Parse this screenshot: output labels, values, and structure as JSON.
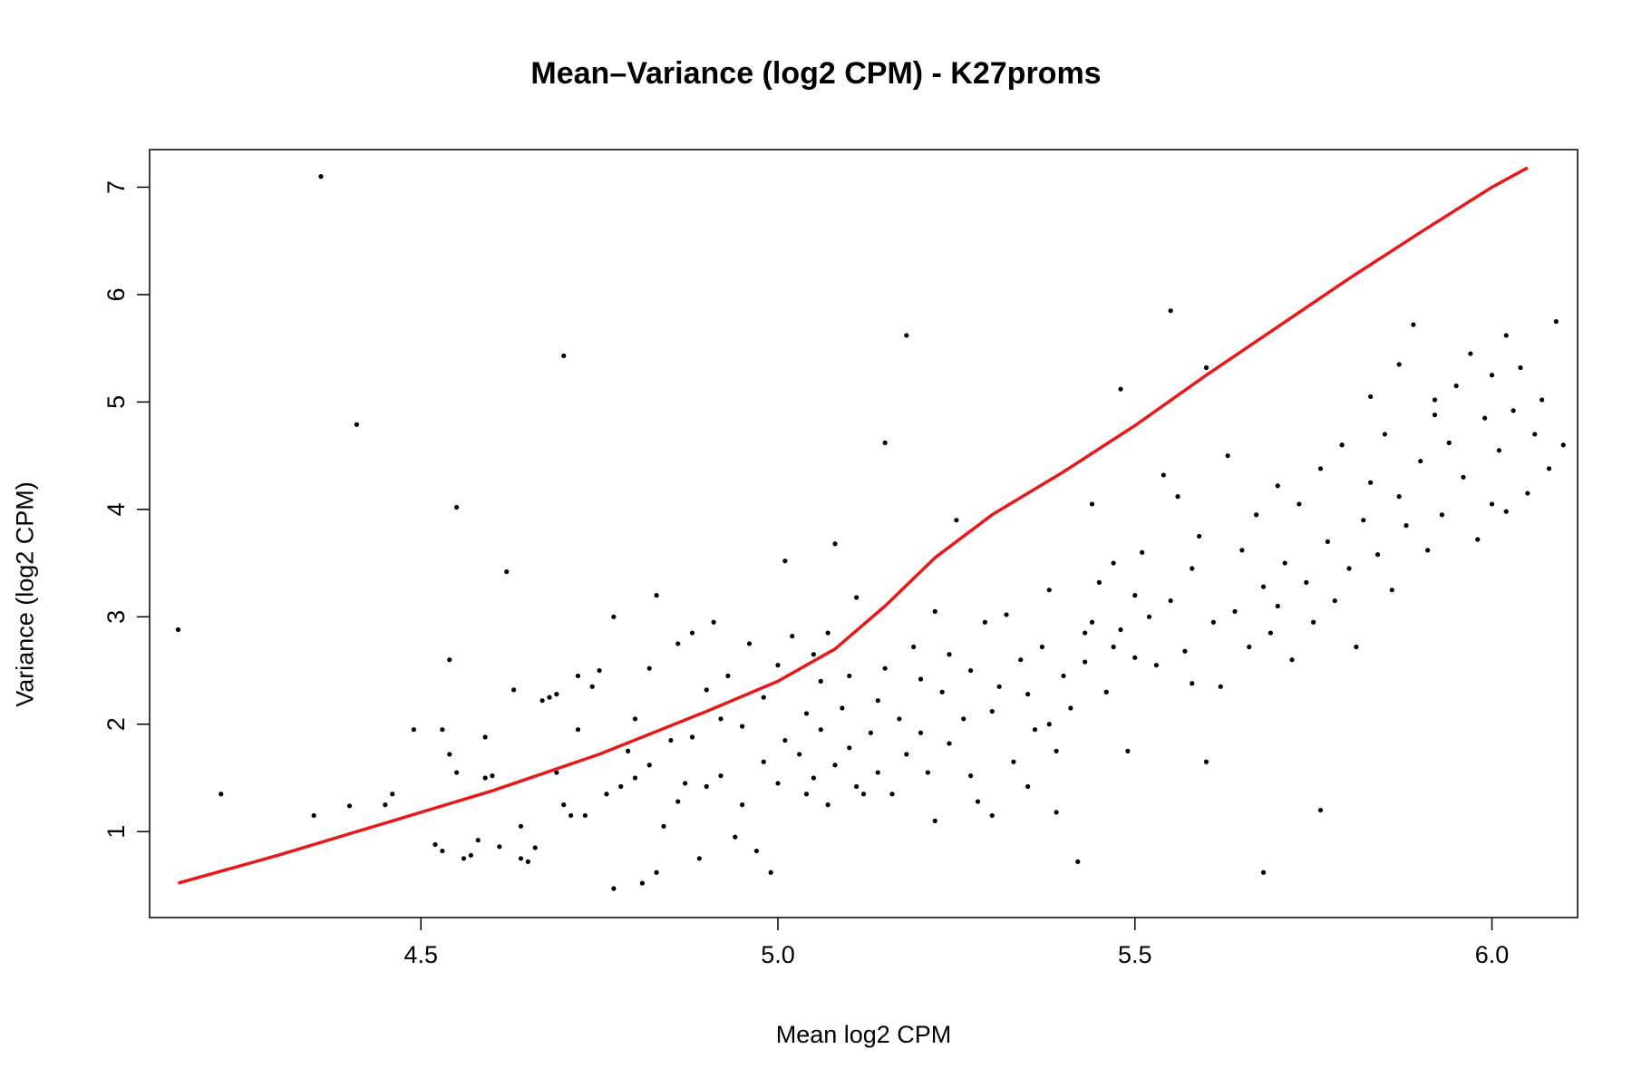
{
  "chart_data": {
    "type": "scatter",
    "title": "Mean–Variance (log2 CPM) - K27proms",
    "xlabel": "Mean log2 CPM",
    "ylabel": "Variance (log2 CPM)",
    "xlim": [
      4.12,
      6.12
    ],
    "ylim": [
      0.2,
      7.35
    ],
    "xticks": [
      4.5,
      5.0,
      5.5,
      6.0
    ],
    "xtick_labels": [
      "4.5",
      "5.0",
      "5.5",
      "6.0"
    ],
    "yticks": [
      1,
      2,
      3,
      4,
      5,
      6,
      7
    ],
    "ytick_labels": [
      "1",
      "2",
      "3",
      "4",
      "5",
      "6",
      "7"
    ],
    "grid": false,
    "legend": "none",
    "series": [
      {
        "type": "scatter",
        "color": "#000000",
        "points": [
          [
            4.16,
            2.88
          ],
          [
            4.22,
            1.35
          ],
          [
            4.35,
            1.15
          ],
          [
            4.36,
            7.1
          ],
          [
            4.4,
            1.24
          ],
          [
            4.41,
            4.79
          ],
          [
            4.45,
            1.25
          ],
          [
            4.46,
            1.35
          ],
          [
            4.49,
            1.95
          ],
          [
            4.52,
            0.88
          ],
          [
            4.53,
            0.82
          ],
          [
            4.53,
            1.95
          ],
          [
            4.54,
            1.72
          ],
          [
            4.54,
            2.6
          ],
          [
            4.55,
            4.02
          ],
          [
            4.55,
            1.55
          ],
          [
            4.56,
            0.75
          ],
          [
            4.57,
            0.78
          ],
          [
            4.58,
            0.92
          ],
          [
            4.59,
            1.5
          ],
          [
            4.59,
            1.88
          ],
          [
            4.6,
            1.52
          ],
          [
            4.61,
            0.86
          ],
          [
            4.62,
            3.42
          ],
          [
            4.63,
            2.32
          ],
          [
            4.64,
            1.05
          ],
          [
            4.64,
            0.75
          ],
          [
            4.65,
            0.72
          ],
          [
            4.66,
            0.85
          ],
          [
            4.67,
            2.22
          ],
          [
            4.68,
            2.25
          ],
          [
            4.69,
            1.55
          ],
          [
            4.69,
            2.28
          ],
          [
            4.7,
            5.43
          ],
          [
            4.7,
            1.25
          ],
          [
            4.71,
            1.15
          ],
          [
            4.72,
            1.95
          ],
          [
            4.72,
            2.45
          ],
          [
            4.73,
            1.15
          ],
          [
            4.74,
            2.35
          ],
          [
            4.75,
            2.5
          ],
          [
            4.76,
            1.35
          ],
          [
            4.77,
            0.47
          ],
          [
            4.77,
            3.0
          ],
          [
            4.78,
            1.42
          ],
          [
            4.79,
            1.75
          ],
          [
            4.8,
            2.05
          ],
          [
            4.8,
            1.5
          ],
          [
            4.81,
            0.52
          ],
          [
            4.82,
            2.52
          ],
          [
            4.82,
            1.62
          ],
          [
            4.83,
            3.2
          ],
          [
            4.83,
            0.62
          ],
          [
            4.84,
            1.05
          ],
          [
            4.85,
            1.85
          ],
          [
            4.86,
            2.75
          ],
          [
            4.86,
            1.28
          ],
          [
            4.87,
            1.45
          ],
          [
            4.88,
            2.85
          ],
          [
            4.88,
            1.88
          ],
          [
            4.89,
            0.75
          ],
          [
            4.9,
            2.32
          ],
          [
            4.9,
            1.42
          ],
          [
            4.91,
            2.95
          ],
          [
            4.92,
            2.05
          ],
          [
            4.92,
            1.52
          ],
          [
            4.93,
            2.45
          ],
          [
            4.94,
            0.95
          ],
          [
            4.95,
            1.98
          ],
          [
            4.95,
            1.25
          ],
          [
            4.96,
            2.75
          ],
          [
            4.97,
            0.82
          ],
          [
            4.98,
            1.65
          ],
          [
            4.98,
            2.25
          ],
          [
            4.99,
            0.62
          ],
          [
            5.0,
            1.45
          ],
          [
            5.0,
            2.55
          ],
          [
            5.01,
            1.85
          ],
          [
            5.01,
            3.52
          ],
          [
            5.02,
            2.82
          ],
          [
            5.03,
            1.72
          ],
          [
            5.04,
            2.1
          ],
          [
            5.04,
            1.35
          ],
          [
            5.05,
            2.65
          ],
          [
            5.05,
            1.5
          ],
          [
            5.06,
            2.4
          ],
          [
            5.06,
            1.95
          ],
          [
            5.07,
            2.85
          ],
          [
            5.07,
            1.25
          ],
          [
            5.08,
            1.62
          ],
          [
            5.08,
            3.68
          ],
          [
            5.09,
            2.15
          ],
          [
            5.1,
            1.78
          ],
          [
            5.1,
            2.45
          ],
          [
            5.11,
            1.42
          ],
          [
            5.11,
            3.18
          ],
          [
            5.12,
            1.35
          ],
          [
            5.13,
            1.92
          ],
          [
            5.14,
            2.22
          ],
          [
            5.14,
            1.55
          ],
          [
            5.15,
            4.62
          ],
          [
            5.15,
            2.52
          ],
          [
            5.16,
            1.35
          ],
          [
            5.17,
            2.05
          ],
          [
            5.18,
            1.72
          ],
          [
            5.18,
            5.62
          ],
          [
            5.19,
            2.72
          ],
          [
            5.2,
            1.92
          ],
          [
            5.2,
            2.42
          ],
          [
            5.21,
            1.55
          ],
          [
            5.22,
            1.1
          ],
          [
            5.22,
            3.05
          ],
          [
            5.23,
            2.3
          ],
          [
            5.24,
            1.82
          ],
          [
            5.24,
            2.65
          ],
          [
            5.25,
            3.9
          ],
          [
            5.26,
            2.05
          ],
          [
            5.27,
            1.52
          ],
          [
            5.27,
            2.5
          ],
          [
            5.28,
            1.28
          ],
          [
            5.29,
            2.95
          ],
          [
            5.3,
            2.12
          ],
          [
            5.3,
            1.15
          ],
          [
            5.31,
            2.35
          ],
          [
            5.32,
            3.02
          ],
          [
            5.33,
            1.65
          ],
          [
            5.34,
            2.6
          ],
          [
            5.35,
            2.28
          ],
          [
            5.35,
            1.42
          ],
          [
            5.36,
            1.95
          ],
          [
            5.37,
            2.72
          ],
          [
            5.38,
            3.25
          ],
          [
            5.38,
            2.0
          ],
          [
            5.39,
            1.75
          ],
          [
            5.39,
            1.18
          ],
          [
            5.4,
            2.45
          ],
          [
            5.41,
            2.15
          ],
          [
            5.42,
            0.72
          ],
          [
            5.43,
            2.58
          ],
          [
            5.43,
            2.85
          ],
          [
            5.44,
            4.05
          ],
          [
            5.44,
            2.95
          ],
          [
            5.45,
            3.32
          ],
          [
            5.46,
            2.3
          ],
          [
            5.47,
            2.72
          ],
          [
            5.47,
            3.5
          ],
          [
            5.48,
            2.88
          ],
          [
            5.48,
            5.12
          ],
          [
            5.49,
            1.75
          ],
          [
            5.5,
            2.62
          ],
          [
            5.5,
            3.2
          ],
          [
            5.51,
            3.6
          ],
          [
            5.52,
            3.0
          ],
          [
            5.53,
            2.55
          ],
          [
            5.54,
            4.32
          ],
          [
            5.55,
            5.85
          ],
          [
            5.55,
            3.15
          ],
          [
            5.56,
            4.12
          ],
          [
            5.57,
            2.68
          ],
          [
            5.58,
            3.45
          ],
          [
            5.58,
            2.38
          ],
          [
            5.59,
            3.75
          ],
          [
            5.6,
            1.65
          ],
          [
            5.6,
            5.32
          ],
          [
            5.61,
            2.95
          ],
          [
            5.62,
            2.35
          ],
          [
            5.63,
            4.5
          ],
          [
            5.64,
            3.05
          ],
          [
            5.65,
            3.62
          ],
          [
            5.66,
            2.72
          ],
          [
            5.67,
            3.95
          ],
          [
            5.68,
            3.28
          ],
          [
            5.68,
            0.62
          ],
          [
            5.69,
            2.85
          ],
          [
            5.7,
            4.22
          ],
          [
            5.7,
            3.1
          ],
          [
            5.71,
            3.5
          ],
          [
            5.72,
            2.6
          ],
          [
            5.73,
            4.05
          ],
          [
            5.74,
            3.32
          ],
          [
            5.75,
            2.95
          ],
          [
            5.76,
            4.38
          ],
          [
            5.76,
            1.2
          ],
          [
            5.77,
            3.7
          ],
          [
            5.78,
            3.15
          ],
          [
            5.79,
            4.6
          ],
          [
            5.8,
            3.45
          ],
          [
            5.81,
            2.72
          ],
          [
            5.82,
            3.9
          ],
          [
            5.83,
            4.25
          ],
          [
            5.83,
            5.05
          ],
          [
            5.84,
            3.58
          ],
          [
            5.85,
            4.7
          ],
          [
            5.86,
            3.25
          ],
          [
            5.87,
            4.12
          ],
          [
            5.87,
            5.35
          ],
          [
            5.88,
            3.85
          ],
          [
            5.89,
            5.72
          ],
          [
            5.9,
            4.45
          ],
          [
            5.91,
            3.62
          ],
          [
            5.92,
            5.02
          ],
          [
            5.92,
            4.88
          ],
          [
            5.93,
            3.95
          ],
          [
            5.94,
            4.62
          ],
          [
            5.95,
            5.15
          ],
          [
            5.96,
            4.3
          ],
          [
            5.97,
            5.45
          ],
          [
            5.98,
            3.72
          ],
          [
            5.99,
            4.85
          ],
          [
            6.0,
            5.25
          ],
          [
            6.0,
            4.05
          ],
          [
            6.01,
            4.55
          ],
          [
            6.02,
            5.62
          ],
          [
            6.02,
            3.98
          ],
          [
            6.03,
            4.92
          ],
          [
            6.04,
            5.32
          ],
          [
            6.05,
            4.15
          ],
          [
            6.06,
            4.7
          ],
          [
            6.07,
            5.02
          ],
          [
            6.08,
            4.38
          ],
          [
            6.09,
            5.75
          ],
          [
            6.1,
            4.6
          ]
        ]
      },
      {
        "type": "line",
        "color": "#e41a1c",
        "points": [
          [
            4.16,
            0.52
          ],
          [
            4.3,
            0.78
          ],
          [
            4.45,
            1.08
          ],
          [
            4.6,
            1.38
          ],
          [
            4.75,
            1.72
          ],
          [
            4.9,
            2.12
          ],
          [
            5.0,
            2.4
          ],
          [
            5.08,
            2.7
          ],
          [
            5.15,
            3.1
          ],
          [
            5.22,
            3.55
          ],
          [
            5.3,
            3.95
          ],
          [
            5.4,
            4.35
          ],
          [
            5.5,
            4.78
          ],
          [
            5.6,
            5.25
          ],
          [
            5.7,
            5.7
          ],
          [
            5.8,
            6.15
          ],
          [
            5.9,
            6.58
          ],
          [
            6.0,
            7.0
          ],
          [
            6.05,
            7.18
          ]
        ]
      }
    ]
  }
}
